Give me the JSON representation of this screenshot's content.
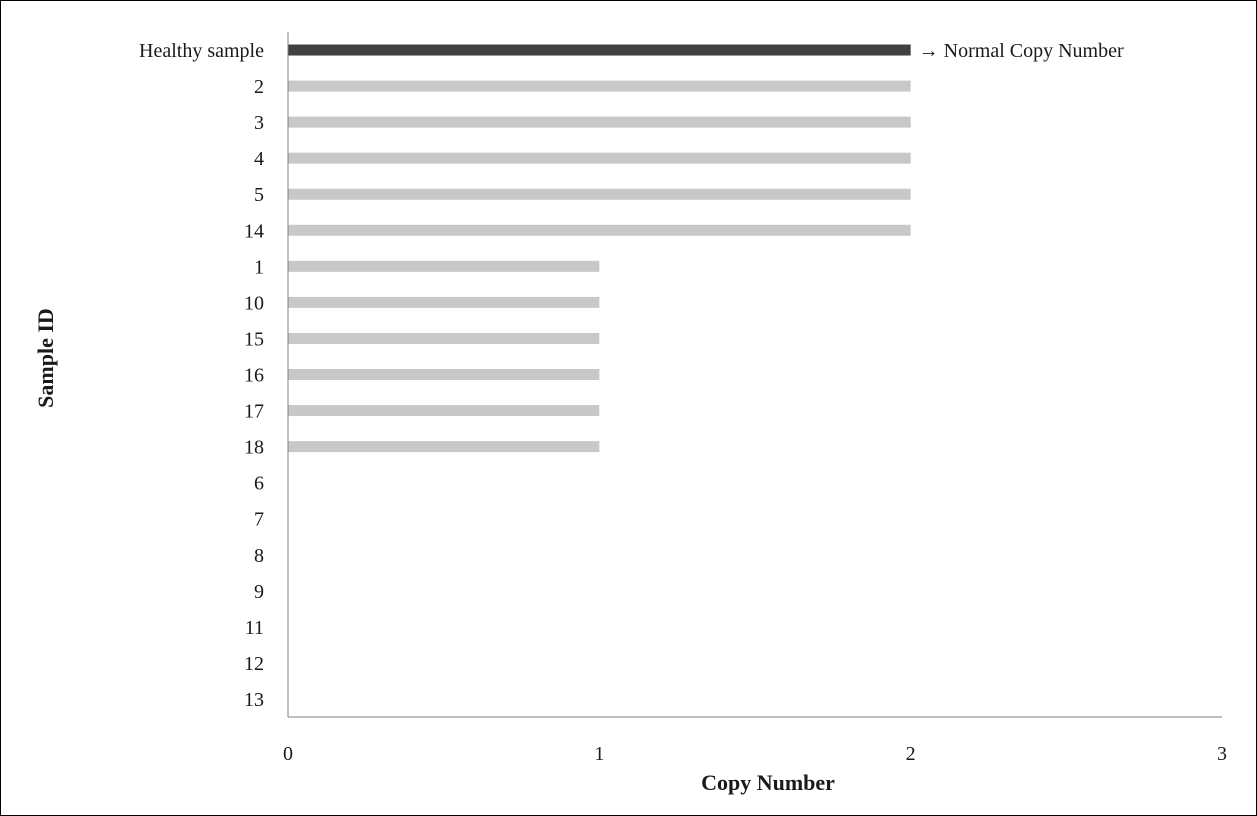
{
  "chart_data": {
    "type": "bar",
    "orientation": "horizontal",
    "title": "",
    "xlabel": "Copy Number",
    "ylabel": "Sample ID",
    "xlim": [
      0,
      3
    ],
    "xticks": [
      "0",
      "1",
      "2",
      "3"
    ],
    "grid": false,
    "legend": "none",
    "categories": [
      "Healthy sample",
      "2",
      "3",
      "4",
      "5",
      "14",
      "1",
      "10",
      "15",
      "16",
      "17",
      "18",
      "6",
      "7",
      "8",
      "9",
      "11",
      "12",
      "13"
    ],
    "values": [
      2,
      2,
      2,
      2,
      2,
      2,
      1,
      1,
      1,
      1,
      1,
      1,
      0,
      0,
      0,
      0,
      0,
      0,
      0
    ],
    "highlight_index": 0,
    "colors": {
      "highlight": "#404040",
      "bar": "#c8c8c8",
      "axis": "#808080"
    },
    "annotations": [
      {
        "text": "→ Normal Copy Number",
        "category_index": 0
      }
    ]
  }
}
